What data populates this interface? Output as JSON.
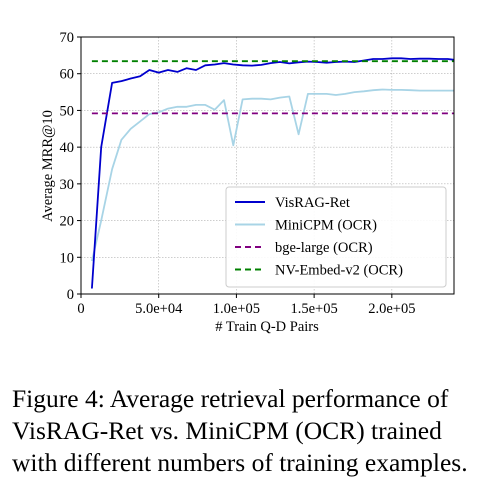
{
  "chart_data": {
    "type": "line",
    "title": "",
    "xlabel": "# Train Q-D Pairs",
    "ylabel": "Average MRR@10",
    "xlim": [
      0,
      240000
    ],
    "ylim": [
      0,
      70
    ],
    "xticks": [
      0,
      50000,
      100000,
      150000,
      200000
    ],
    "xtick_labels": [
      "0",
      "5.0e+04",
      "1.0e+05",
      "1.5e+05",
      "2.0e+05"
    ],
    "yticks": [
      0,
      10,
      20,
      30,
      40,
      50,
      60,
      70
    ],
    "ytick_labels": [
      "0",
      "10",
      "20",
      "30",
      "40",
      "50",
      "60",
      "70"
    ],
    "grid": true,
    "legend_position": "lower-right",
    "series": [
      {
        "name": "VisRAG-Ret",
        "color": "#0000cd",
        "style": "solid",
        "x": [
          7000,
          13000,
          20000,
          26000,
          32000,
          38000,
          44000,
          50000,
          56000,
          62000,
          68000,
          74000,
          80000,
          86000,
          92000,
          98000,
          104000,
          110000,
          116000,
          122000,
          128000,
          134000,
          140000,
          146000,
          152000,
          158000,
          164000,
          170000,
          176000,
          182000,
          188000,
          194000,
          200000,
          206000,
          212000,
          218000,
          224000,
          230000,
          236000,
          240000
        ],
        "y": [
          1.5,
          40,
          57.5,
          58,
          58.7,
          59.3,
          61,
          60.3,
          61,
          60.5,
          61.5,
          61,
          62.3,
          62.5,
          62.9,
          62.5,
          62.3,
          62.2,
          62.4,
          62.9,
          63.2,
          62.8,
          63.1,
          63.3,
          63.2,
          63,
          63.2,
          63.3,
          63.2,
          63.6,
          64,
          64,
          64.2,
          64.2,
          64,
          64.1,
          64.1,
          64,
          64,
          63.8
        ]
      },
      {
        "name": "MiniCPM (OCR)",
        "color": "#a8d4e6",
        "style": "solid",
        "x": [
          7000,
          13000,
          20000,
          26000,
          32000,
          38000,
          44000,
          50000,
          56000,
          62000,
          68000,
          74000,
          80000,
          86000,
          92000,
          98000,
          104000,
          110000,
          116000,
          122000,
          128000,
          134000,
          140000,
          146000,
          152000,
          158000,
          164000,
          170000,
          176000,
          182000,
          188000,
          194000,
          200000,
          206000,
          212000,
          218000,
          224000,
          230000,
          236000,
          240000
        ],
        "y": [
          9,
          20,
          34,
          42,
          45,
          47,
          49,
          49.5,
          50.5,
          51,
          51,
          51.5,
          51.5,
          50.2,
          52.8,
          40.5,
          53,
          53.2,
          53.2,
          53,
          53.5,
          53.8,
          43.5,
          54.5,
          54.5,
          54.5,
          54.2,
          54.5,
          55,
          55.2,
          55.5,
          55.7,
          55.6,
          55.6,
          55.5,
          55.4,
          55.4,
          55.4,
          55.4,
          55.4
        ]
      },
      {
        "name": "bge-large (OCR)",
        "color": "#800080",
        "style": "dashed",
        "x": [
          7000,
          240000
        ],
        "y": [
          49.2,
          49.2
        ]
      },
      {
        "name": "NV-Embed-v2 (OCR)",
        "color": "#008000",
        "style": "dashed",
        "x": [
          7000,
          240000
        ],
        "y": [
          63.4,
          63.4
        ]
      }
    ]
  },
  "caption": {
    "line1": "Figure 4:  Average retrieval performance of",
    "line2": "VisRAG-Ret vs.  MiniCPM (OCR) trained",
    "line3": "with different numbers of training examples."
  }
}
